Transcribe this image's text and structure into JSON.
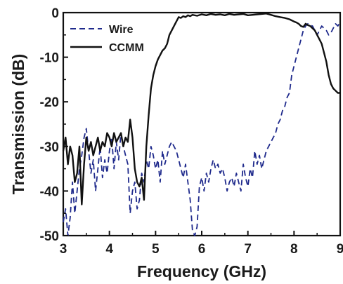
{
  "chart_data": {
    "type": "line",
    "xlabel": "Frequency (GHz)",
    "ylabel": "Transmission (dB)",
    "xlim": [
      3,
      9
    ],
    "ylim": [
      -50,
      0
    ],
    "x_ticks": [
      "3",
      "4",
      "5",
      "6",
      "7",
      "8",
      "9"
    ],
    "y_ticks": [
      "0",
      "-10",
      "-20",
      "-30",
      "-40",
      "-50"
    ],
    "x_tick_values": [
      3,
      4,
      5,
      6,
      7,
      8,
      9
    ],
    "y_tick_values": [
      0,
      -10,
      -20,
      -30,
      -40,
      -50
    ],
    "grid": false,
    "legend_position": "top-left",
    "series": [
      {
        "name": "Wire",
        "color": "#1f2a8c",
        "style": "dashed",
        "x": [
          3.0,
          3.05,
          3.1,
          3.15,
          3.2,
          3.25,
          3.3,
          3.35,
          3.4,
          3.45,
          3.5,
          3.55,
          3.6,
          3.65,
          3.7,
          3.75,
          3.8,
          3.85,
          3.9,
          3.95,
          4.0,
          4.05,
          4.1,
          4.15,
          4.2,
          4.25,
          4.3,
          4.35,
          4.4,
          4.45,
          4.5,
          4.55,
          4.6,
          4.65,
          4.7,
          4.75,
          4.8,
          4.85,
          4.9,
          4.95,
          5.0,
          5.05,
          5.1,
          5.15,
          5.2,
          5.25,
          5.3,
          5.35,
          5.4,
          5.45,
          5.5,
          5.55,
          5.6,
          5.65,
          5.7,
          5.75,
          5.8,
          5.85,
          5.9,
          5.95,
          6.0,
          6.05,
          6.1,
          6.15,
          6.2,
          6.25,
          6.3,
          6.35,
          6.4,
          6.45,
          6.5,
          6.55,
          6.6,
          6.65,
          6.7,
          6.75,
          6.8,
          6.85,
          6.9,
          6.95,
          7.0,
          7.05,
          7.1,
          7.15,
          7.2,
          7.25,
          7.3,
          7.35,
          7.4,
          7.45,
          7.5,
          7.55,
          7.6,
          7.65,
          7.7,
          7.75,
          7.8,
          7.85,
          7.9,
          7.95,
          8.0,
          8.05,
          8.1,
          8.15,
          8.2,
          8.25,
          8.3,
          8.35,
          8.4,
          8.45,
          8.5,
          8.55,
          8.6,
          8.65,
          8.7,
          8.75,
          8.8,
          8.85,
          8.9,
          8.95,
          9.0
        ],
        "values": [
          -47,
          -44,
          -50,
          -46,
          -38,
          -45,
          -40,
          -35,
          -32,
          -28,
          -26,
          -31,
          -36,
          -33,
          -40,
          -35,
          -30,
          -37,
          -33,
          -36,
          -31,
          -28,
          -35,
          -29,
          -33,
          -27,
          -30,
          -32,
          -34,
          -45,
          -40,
          -38,
          -44,
          -42,
          -36,
          -38,
          -33,
          -35,
          -30,
          -32,
          -35,
          -33,
          -38,
          -31,
          -34,
          -32,
          -30,
          -29,
          -30,
          -31,
          -33,
          -35,
          -37,
          -34,
          -38,
          -42,
          -49,
          -50,
          -48,
          -39,
          -37,
          -40,
          -36,
          -38,
          -35,
          -33,
          -35,
          -34,
          -36,
          -35,
          -37,
          -40,
          -38,
          -37,
          -39,
          -36,
          -38,
          -40,
          -34,
          -37,
          -39,
          -35,
          -37,
          -31,
          -34,
          -32,
          -35,
          -33,
          -31,
          -30,
          -29,
          -28,
          -27,
          -25,
          -24,
          -22,
          -21,
          -19,
          -18,
          -14,
          -12,
          -10,
          -8,
          -6,
          -4,
          -3,
          -2.5,
          -2.8,
          -3,
          -4,
          -5,
          -4,
          -3,
          -3.5,
          -4,
          -5,
          -4.5,
          -3.5,
          -2.5,
          -3,
          -2
        ]
      },
      {
        "name": "CCMM",
        "color": "#111111",
        "style": "solid",
        "x": [
          3.0,
          3.05,
          3.1,
          3.15,
          3.2,
          3.25,
          3.3,
          3.35,
          3.4,
          3.45,
          3.5,
          3.55,
          3.6,
          3.65,
          3.7,
          3.75,
          3.8,
          3.85,
          3.9,
          3.95,
          4.0,
          4.05,
          4.1,
          4.15,
          4.2,
          4.25,
          4.3,
          4.35,
          4.4,
          4.45,
          4.5,
          4.55,
          4.6,
          4.65,
          4.7,
          4.75,
          4.8,
          4.85,
          4.9,
          4.95,
          5.0,
          5.05,
          5.1,
          5.15,
          5.2,
          5.25,
          5.3,
          5.35,
          5.4,
          5.45,
          5.5,
          5.55,
          5.6,
          5.65,
          5.7,
          5.75,
          5.8,
          5.9,
          6.0,
          6.1,
          6.2,
          6.3,
          6.4,
          6.5,
          6.6,
          6.7,
          6.8,
          6.9,
          7.0,
          7.1,
          7.2,
          7.3,
          7.4,
          7.5,
          7.6,
          7.7,
          7.8,
          7.9,
          8.0,
          8.05,
          8.1,
          8.15,
          8.2,
          8.25,
          8.3,
          8.35,
          8.4,
          8.45,
          8.5,
          8.55,
          8.6,
          8.65,
          8.7,
          8.75,
          8.8,
          8.85,
          8.9,
          8.95,
          9.0
        ],
        "values": [
          -31,
          -28,
          -34,
          -30,
          -32,
          -38,
          -36,
          -30,
          -43,
          -34,
          -28,
          -31,
          -29,
          -32,
          -30,
          -28,
          -31,
          -29,
          -30,
          -27,
          -28,
          -30,
          -27,
          -29,
          -28,
          -27,
          -30,
          -28,
          -29,
          -24,
          -28,
          -35,
          -38,
          -39,
          -37,
          -42,
          -30,
          -23,
          -17,
          -14,
          -12,
          -10.5,
          -9.5,
          -8.5,
          -8,
          -7,
          -5,
          -4,
          -3,
          -2,
          -1,
          -1.2,
          -0.8,
          -1,
          -0.6,
          -0.8,
          -0.5,
          -0.7,
          -0.4,
          -0.6,
          -0.3,
          -0.5,
          -0.4,
          -0.6,
          -0.3,
          -0.5,
          -0.4,
          -0.3,
          -0.6,
          -0.5,
          -0.4,
          -0.3,
          -0.2,
          -0.5,
          -0.8,
          -1,
          -1.2,
          -1.5,
          -2,
          -2.2,
          -2.5,
          -3,
          -3.2,
          -2.5,
          -2.8,
          -3,
          -3.5,
          -4,
          -5,
          -6,
          -7,
          -9,
          -11,
          -14,
          -16,
          -17,
          -17.5,
          -18,
          -18
        ]
      }
    ]
  }
}
